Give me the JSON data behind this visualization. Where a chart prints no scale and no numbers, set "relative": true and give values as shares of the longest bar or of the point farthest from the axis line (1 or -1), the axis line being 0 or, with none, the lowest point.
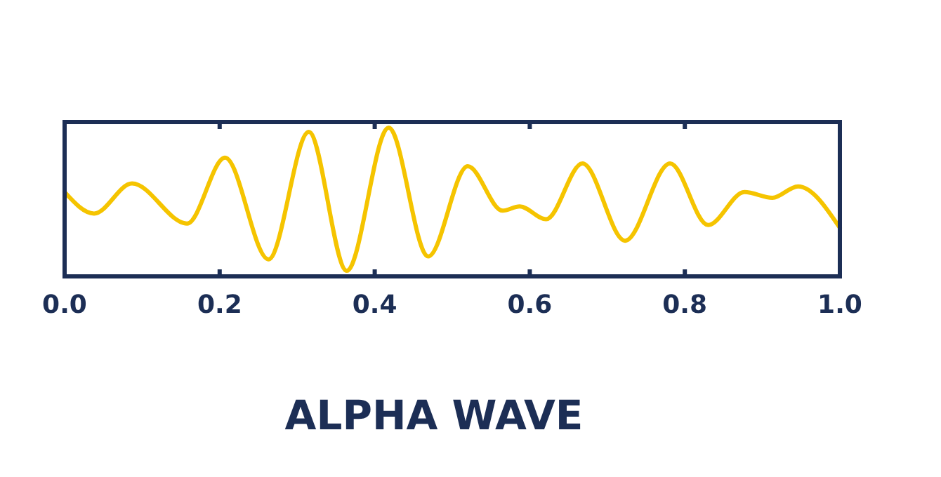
{
  "chart_data": {
    "type": "line",
    "title": "ALPHA WAVE",
    "relative": true,
    "tick_labels": "x",
    "grid": false,
    "xlim": [
      0,
      1
    ],
    "xticks": [
      {
        "value": 0,
        "label": "0.0"
      },
      {
        "value": 0.2,
        "label": "0.2"
      },
      {
        "value": 0.4,
        "label": "0.4"
      },
      {
        "value": 0.6,
        "label": "0.6"
      },
      {
        "value": 0.8,
        "label": "0.8"
      },
      {
        "value": 1,
        "label": "1.0"
      }
    ],
    "series": [
      {
        "color": "#f5c400",
        "x": [
          0,
          0.038,
          0.087,
          0.158,
          0.207,
          0.263,
          0.315,
          0.364,
          0.418,
          0.469,
          0.52,
          0.565,
          0.587,
          0.621,
          0.668,
          0.723,
          0.781,
          0.83,
          0.877,
          0.913,
          0.946,
          1
        ],
        "values": [
          0.55,
          0.4,
          0.61,
          0.33,
          0.79,
          0.08,
          0.97,
          0,
          1,
          0.1,
          0.73,
          0.42,
          0.45,
          0.36,
          0.75,
          0.21,
          0.75,
          0.32,
          0.55,
          0.51,
          0.59,
          0.3
        ]
      }
    ]
  }
}
